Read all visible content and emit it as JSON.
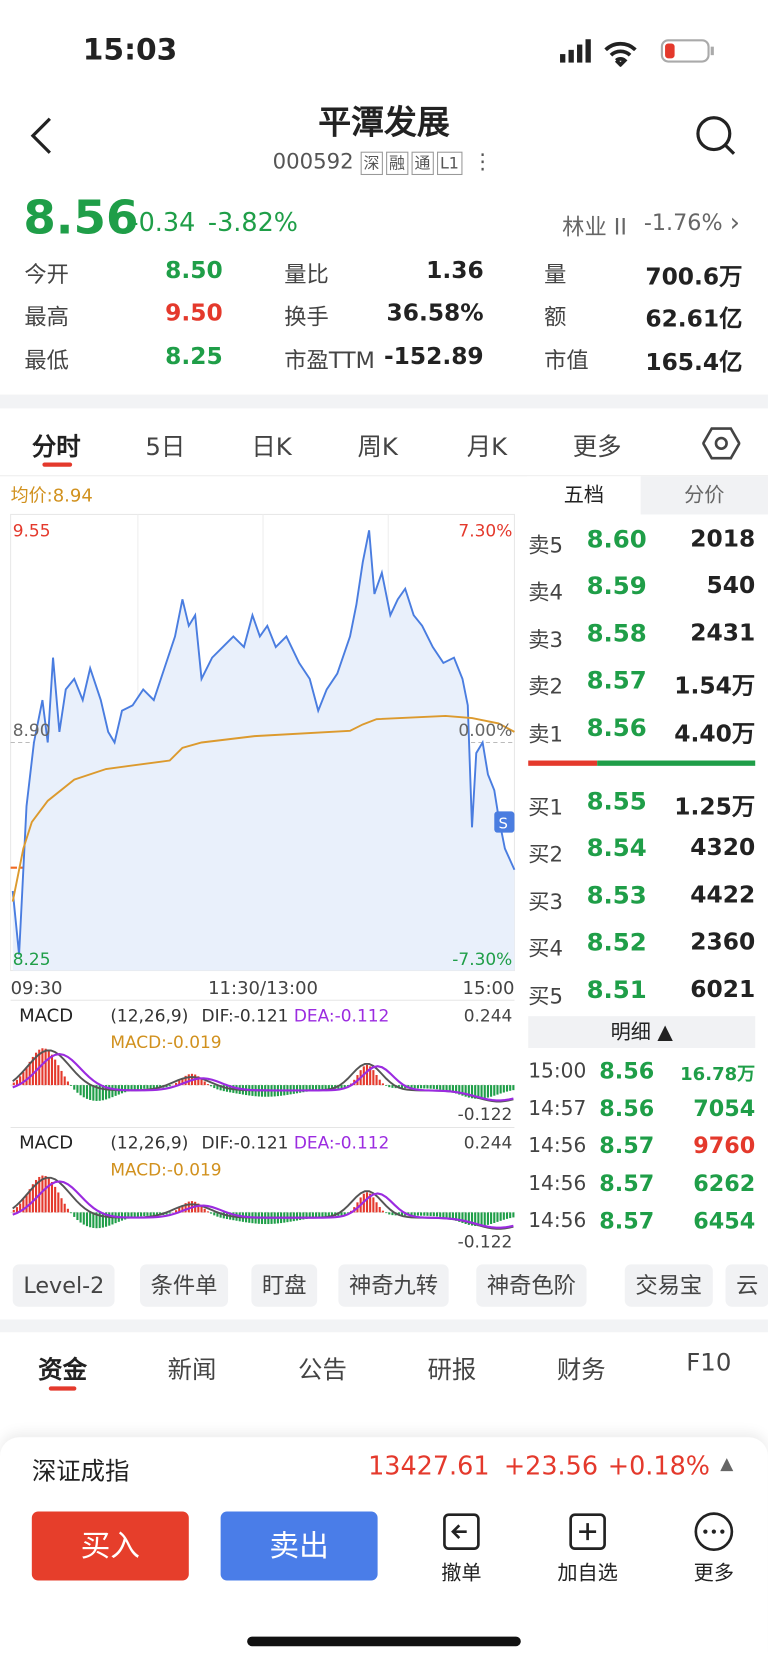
{
  "status": {
    "time": "15:03"
  },
  "header": {
    "title": "平潭发展",
    "code": "000592",
    "tags": [
      "深",
      "融",
      "通",
      "L1"
    ]
  },
  "quote": {
    "price": "8.56",
    "change": "-0.34",
    "pct": "-3.82%",
    "sector": "林业 II",
    "sector_pct": "-1.76%"
  },
  "stats": [
    [
      "今开",
      "8.50"
    ],
    [
      "最高",
      "9.50"
    ],
    [
      "最低",
      "8.25"
    ],
    [
      "量比",
      "1.36"
    ],
    [
      "换手",
      "36.58%"
    ],
    [
      "市盈TTM",
      "-152.89"
    ],
    [
      "量",
      "700.6万"
    ],
    [
      "额",
      "62.61亿"
    ],
    [
      "市值",
      "165.4亿"
    ]
  ],
  "tabs": [
    "分时",
    "5日",
    "日K",
    "周K",
    "月K",
    "更多"
  ],
  "chart": {
    "avg": "均价:8.94",
    "top": "9.55",
    "top_pct": "7.30%",
    "mid": "8.90",
    "mid_pct": "0.00%",
    "bottom": "8.25",
    "bottom_pct": "-7.30%",
    "times": [
      "09:30",
      "11:30/13:00",
      "15:00"
    ]
  },
  "macd": [
    {
      "label": "MACD",
      "params": "(12,26,9)",
      "dif": "DIF:-0.121",
      "dea": "DEA:-0.112",
      "macd": "MACD:-0.019",
      "top": "0.244",
      "bottom": "-0.122"
    },
    {
      "label": "MACD",
      "params": "(12,26,9)",
      "dif": "DIF:-0.121",
      "dea": "DEA:-0.112",
      "macd": "MACD:-0.019",
      "top": "0.244",
      "bottom": "-0.122"
    }
  ],
  "book": {
    "tabs": [
      "五档",
      "分价"
    ],
    "asks": [
      [
        "卖5",
        "8.60",
        "2018"
      ],
      [
        "卖4",
        "8.59",
        "540"
      ],
      [
        "卖3",
        "8.58",
        "2431"
      ],
      [
        "卖2",
        "8.57",
        "1.54万"
      ],
      [
        "卖1",
        "8.56",
        "4.40万"
      ]
    ],
    "bids": [
      [
        "买1",
        "8.55",
        "1.25万"
      ],
      [
        "买2",
        "8.54",
        "4320"
      ],
      [
        "买3",
        "8.53",
        "4422"
      ],
      [
        "买4",
        "8.52",
        "2360"
      ],
      [
        "买5",
        "8.51",
        "6021"
      ]
    ],
    "detail": "明细",
    "trades": [
      [
        "15:00",
        "8.56",
        "16.78万"
      ],
      [
        "14:57",
        "8.56",
        "7054"
      ],
      [
        "14:56",
        "8.57",
        "9760"
      ],
      [
        "14:56",
        "8.57",
        "6262"
      ],
      [
        "14:56",
        "8.57",
        "6454"
      ]
    ]
  },
  "tools": [
    "Level-2",
    "条件单",
    "盯盘",
    "神奇九转",
    "神奇色阶",
    "交易宝",
    "云"
  ],
  "bottom_tabs": [
    "资金",
    "新闻",
    "公告",
    "研报",
    "财务",
    "F10"
  ],
  "index": {
    "name": "深证成指",
    "value": "13427.61",
    "change": "+23.56",
    "pct": "+0.18%"
  },
  "actions": {
    "buy": "买入",
    "sell": "卖出",
    "icons": [
      "撤单",
      "加自选",
      "更多"
    ]
  }
}
